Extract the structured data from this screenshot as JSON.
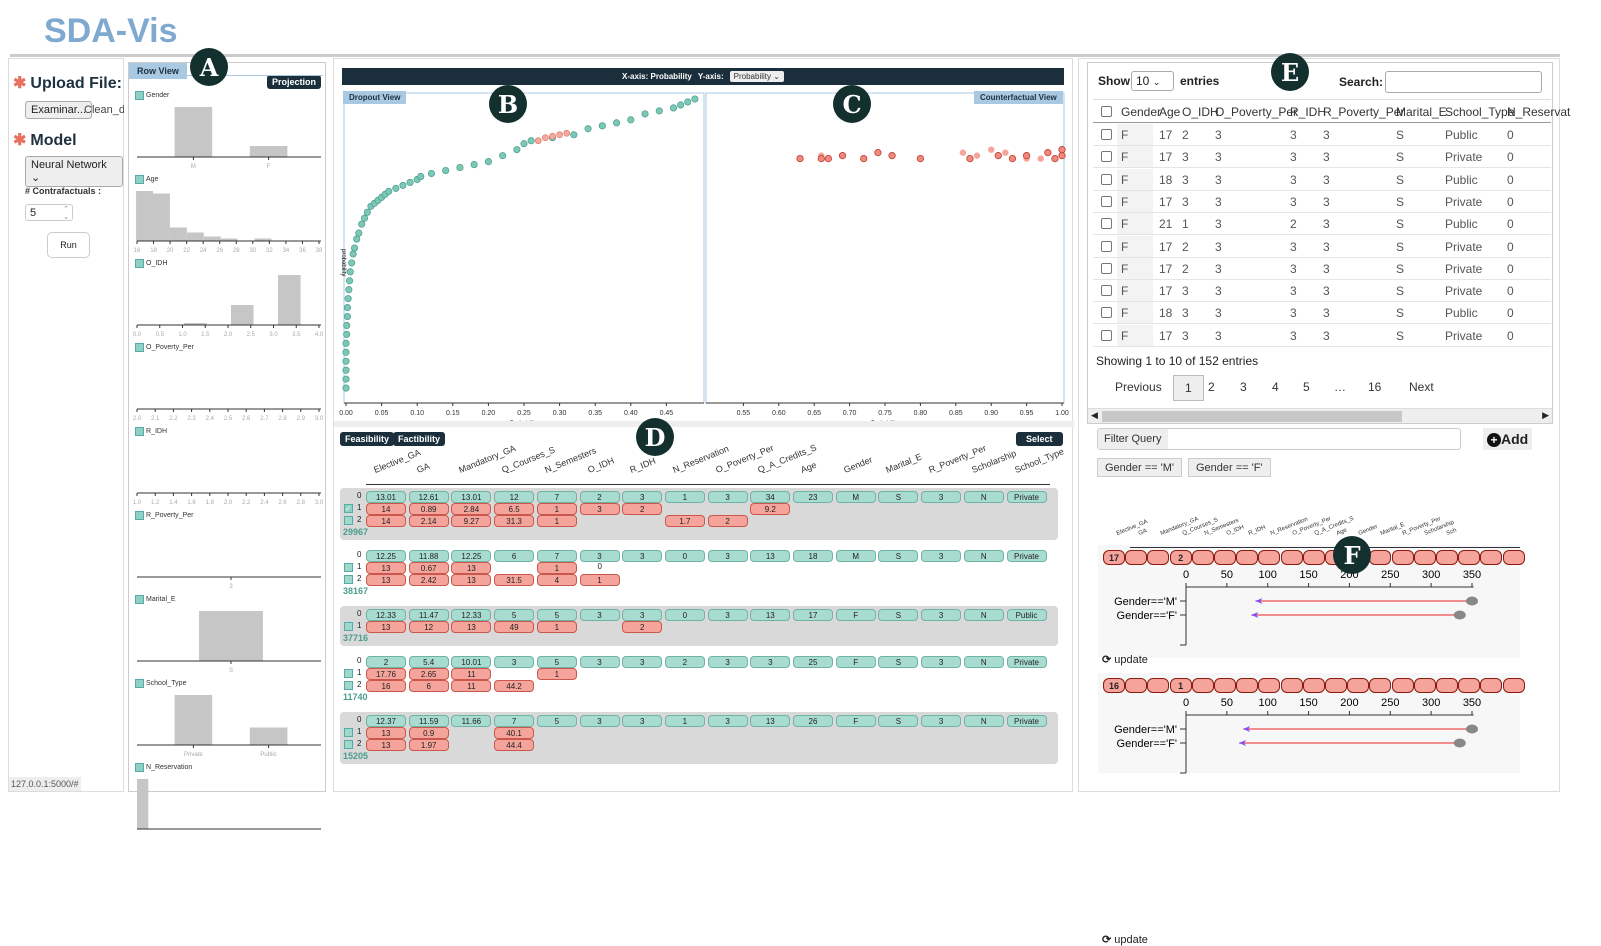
{
  "app": {
    "title": "SDA-Vis",
    "status_url": "127.0.0.1:5000/#"
  },
  "badges": [
    "A",
    "B",
    "C",
    "D",
    "E",
    "F"
  ],
  "left": {
    "upload_label": "Upload File:",
    "browse_button": "Examinar...",
    "file_name": "Clean_da",
    "model_label": "Model",
    "model_value": "Neural Network",
    "contrafactuals_label": "# Contrafactuals :",
    "contrafactuals_value": "5",
    "run_button": "Run"
  },
  "row_view": {
    "tab": "Row View",
    "projection_button": "Projection",
    "histograms": [
      {
        "name": "Gender",
        "ticks": [
          "M",
          "F"
        ],
        "bars": [
          {
            "at": 0.3,
            "w": 0.2,
            "v": 1.0
          },
          {
            "at": 0.7,
            "w": 0.2,
            "v": 0.22
          }
        ]
      },
      {
        "name": "Age",
        "ticks": [
          "16",
          "18",
          "20",
          "22",
          "24",
          "26",
          "28",
          "30",
          "32",
          "34",
          "36",
          "38"
        ],
        "bars": [
          {
            "at": 0.04,
            "w": 0.09,
            "v": 1.0
          },
          {
            "at": 0.13,
            "w": 0.09,
            "v": 0.95
          },
          {
            "at": 0.22,
            "w": 0.09,
            "v": 0.27
          },
          {
            "at": 0.31,
            "w": 0.09,
            "v": 0.17
          },
          {
            "at": 0.4,
            "w": 0.09,
            "v": 0.09
          },
          {
            "at": 0.49,
            "w": 0.09,
            "v": 0.05
          },
          {
            "at": 0.67,
            "w": 0.09,
            "v": 0.05
          }
        ]
      },
      {
        "name": "O_IDH",
        "ticks": [
          "0.0",
          "0.5",
          "1.0",
          "1.5",
          "2.0",
          "2.5",
          "3.0",
          "3.5",
          "4.0"
        ],
        "bars": [
          {
            "at": 0.31,
            "w": 0.12,
            "v": 0.04
          },
          {
            "at": 0.56,
            "w": 0.12,
            "v": 0.4
          },
          {
            "at": 0.81,
            "w": 0.12,
            "v": 1.0
          }
        ]
      },
      {
        "name": "O_Poverty_Per",
        "ticks": [
          "2.0",
          "2.1",
          "2.2",
          "2.3",
          "2.4",
          "2.5",
          "2.6",
          "2.7",
          "2.8",
          "2.9",
          "3.0"
        ],
        "bars": []
      },
      {
        "name": "R_IDH",
        "ticks": [
          "1.0",
          "1.2",
          "1.4",
          "1.6",
          "1.8",
          "2.0",
          "2.2",
          "2.4",
          "2.6",
          "2.8",
          "3.0"
        ],
        "bars": []
      },
      {
        "name": "R_Poverty_Per",
        "ticks": [
          "3"
        ],
        "bars": []
      },
      {
        "name": "Marital_E",
        "ticks": [
          "S"
        ],
        "bars": [
          {
            "at": 0.5,
            "w": 0.34,
            "v": 1.0
          }
        ]
      },
      {
        "name": "School_Type",
        "ticks": [
          "Private",
          "Public"
        ],
        "bars": [
          {
            "at": 0.3,
            "w": 0.2,
            "v": 1.0
          },
          {
            "at": 0.7,
            "w": 0.2,
            "v": 0.35
          }
        ]
      },
      {
        "name": "N_Reservation",
        "ticks": [],
        "bars": [
          {
            "at": 0.03,
            "w": 0.06,
            "v": 1.0
          }
        ]
      }
    ]
  },
  "projection": {
    "x_axis_label": "X-axis: Probability",
    "y_axis_label": "Y-axis:",
    "y_axis_value": "Probability",
    "dropout": {
      "tab": "Dropout View",
      "xlabel": "Probability",
      "ylabel": "probability",
      "xticks": [
        "0.00",
        "0.05",
        "0.10",
        "0.15",
        "0.20",
        "0.25",
        "0.30",
        "0.35",
        "0.40",
        "0.45"
      ],
      "xlim": [
        0,
        0.5
      ],
      "points": [
        [
          0,
          0.03
        ],
        [
          0,
          0.06
        ],
        [
          0,
          0.09
        ],
        [
          0,
          0.12
        ],
        [
          0,
          0.15
        ],
        [
          0,
          0.18
        ],
        [
          0.001,
          0.21
        ],
        [
          0.001,
          0.24
        ],
        [
          0.002,
          0.27
        ],
        [
          0.002,
          0.3
        ],
        [
          0.003,
          0.33
        ],
        [
          0.004,
          0.36
        ],
        [
          0.005,
          0.39
        ],
        [
          0.006,
          0.42
        ],
        [
          0.008,
          0.45
        ],
        [
          0.01,
          0.48
        ],
        [
          0.012,
          0.5
        ],
        [
          0.015,
          0.53
        ],
        [
          0.018,
          0.55
        ],
        [
          0.022,
          0.58
        ],
        [
          0.026,
          0.6
        ],
        [
          0.03,
          0.62
        ],
        [
          0.035,
          0.64
        ],
        [
          0.04,
          0.65
        ],
        [
          0.045,
          0.66
        ],
        [
          0.05,
          0.67
        ],
        [
          0.055,
          0.68
        ],
        [
          0.06,
          0.69
        ],
        [
          0.07,
          0.7
        ],
        [
          0.08,
          0.71
        ],
        [
          0.09,
          0.72
        ],
        [
          0.1,
          0.73
        ],
        [
          0.105,
          0.74
        ],
        [
          0.12,
          0.75
        ],
        [
          0.14,
          0.76
        ],
        [
          0.16,
          0.77
        ],
        [
          0.18,
          0.78
        ],
        [
          0.2,
          0.79
        ],
        [
          0.22,
          0.81
        ],
        [
          0.24,
          0.83
        ],
        [
          0.25,
          0.85
        ],
        [
          0.26,
          0.86
        ],
        [
          0.29,
          0.87
        ],
        [
          0.32,
          0.88
        ],
        [
          0.34,
          0.9
        ],
        [
          0.36,
          0.91
        ],
        [
          0.38,
          0.92
        ],
        [
          0.4,
          0.93
        ],
        [
          0.42,
          0.95
        ],
        [
          0.44,
          0.96
        ],
        [
          0.46,
          0.97
        ],
        [
          0.47,
          0.98
        ],
        [
          0.48,
          0.99
        ],
        [
          0.49,
          1.0
        ]
      ],
      "highlight": [
        [
          0.27,
          0.86
        ],
        [
          0.28,
          0.87
        ],
        [
          0.29,
          0.875
        ],
        [
          0.3,
          0.88
        ],
        [
          0.31,
          0.885
        ]
      ]
    },
    "counterfactual": {
      "tab": "Counterfactual View",
      "xlabel": "Probability",
      "xticks": [
        "0.55",
        "0.60",
        "0.65",
        "0.70",
        "0.75",
        "0.80",
        "0.85",
        "0.90",
        "0.95",
        "1.00"
      ],
      "xlim": [
        0.5,
        1.0
      ],
      "points": [
        [
          0.63,
          0.8
        ],
        [
          0.66,
          0.8
        ],
        [
          0.67,
          0.8
        ],
        [
          0.69,
          0.81
        ],
        [
          0.72,
          0.8
        ],
        [
          0.74,
          0.82
        ],
        [
          0.76,
          0.81
        ],
        [
          0.8,
          0.8
        ],
        [
          0.87,
          0.8
        ],
        [
          0.91,
          0.81
        ],
        [
          0.93,
          0.8
        ],
        [
          0.95,
          0.81
        ],
        [
          0.98,
          0.82
        ],
        [
          0.99,
          0.8
        ],
        [
          1.0,
          0.81
        ],
        [
          1.0,
          0.83
        ]
      ],
      "light_points": [
        [
          0.66,
          0.81
        ],
        [
          0.86,
          0.82
        ],
        [
          0.88,
          0.81
        ],
        [
          0.9,
          0.83
        ],
        [
          0.92,
          0.82
        ],
        [
          0.95,
          0.8
        ],
        [
          0.97,
          0.8
        ]
      ]
    }
  },
  "feasibility": {
    "feasibility_button": "Feasibility",
    "factibility_button": "Factibility",
    "select_button": "Select",
    "columns": [
      "Elective_GA",
      "GA",
      "Mandatory_GA",
      "Q_Courses_S",
      "N_Semesters",
      "O_IDH",
      "R_IDH",
      "N_Reservation",
      "O_Poverty_Per",
      "Q_A_Credits_S",
      "Age",
      "Gender",
      "Marital_E",
      "R_Poverty_Per",
      "Scholarship",
      "School_Type"
    ],
    "groups": [
      {
        "id": "29967",
        "rows": [
          [
            "13.01",
            "12.61",
            "13.01",
            "12",
            "7",
            "2",
            "3",
            "1",
            "3",
            "34",
            "23",
            "M",
            "S",
            "3",
            "N",
            "Private"
          ],
          [
            "14",
            "0.89",
            "2.84",
            "6.5",
            "1",
            "3",
            "2",
            null,
            null,
            "9.2"
          ],
          [
            "14",
            "2.14",
            "9.27",
            "31.3",
            "1",
            null,
            null,
            "1.7",
            "2"
          ]
        ],
        "checked": [
          1
        ]
      },
      {
        "id": "38167",
        "rows": [
          [
            "12.25",
            "11.88",
            "12.25",
            "6",
            "7",
            "3",
            "3",
            "0",
            "3",
            "13",
            "18",
            "M",
            "S",
            "3",
            "N",
            "Private"
          ],
          [
            "13",
            "0.67",
            "13",
            null,
            "1",
            "=0"
          ],
          [
            "13",
            "2.42",
            "13",
            "31.5",
            "4",
            "1"
          ]
        ],
        "checked": []
      },
      {
        "id": "37716",
        "rows": [
          [
            "12.33",
            "11.47",
            "12.33",
            "5",
            "5",
            "3",
            "3",
            "0",
            "3",
            "13",
            "17",
            "F",
            "S",
            "3",
            "N",
            "Public"
          ],
          [
            "13",
            "12",
            "13",
            "49",
            "1",
            null,
            "2"
          ]
        ],
        "checked": []
      },
      {
        "id": "11740",
        "rows": [
          [
            "2",
            "5.4",
            "10.01",
            "3",
            "5",
            "3",
            "3",
            "2",
            "3",
            "3",
            "25",
            "F",
            "S",
            "3",
            "N",
            "Private"
          ],
          [
            "17.76",
            "2.65",
            "11",
            null,
            "1"
          ],
          [
            "16",
            "6",
            "11",
            "44.2"
          ]
        ],
        "checked": []
      },
      {
        "id": "15205",
        "rows": [
          [
            "12.37",
            "11.59",
            "11.66",
            "7",
            "5",
            "3",
            "3",
            "1",
            "3",
            "13",
            "26",
            "F",
            "S",
            "3",
            "N",
            "Private"
          ],
          [
            "13",
            "0.9",
            null,
            "40.1"
          ],
          [
            "13",
            "1.97",
            null,
            "44.4"
          ]
        ],
        "checked": []
      }
    ]
  },
  "data_table": {
    "show_label": "Show",
    "page_size": "10",
    "entries_label": "entries",
    "search_label": "Search:",
    "headers": [
      "Gender",
      "Age",
      "O_IDH",
      "O_Poverty_Per",
      "R_IDH",
      "R_Poverty_Per",
      "Marital_E",
      "School_Type",
      "N_Reservat"
    ],
    "rows": [
      [
        "F",
        "17",
        "2",
        "3",
        "3",
        "3",
        "S",
        "Public",
        "0"
      ],
      [
        "F",
        "17",
        "3",
        "3",
        "3",
        "3",
        "S",
        "Private",
        "0"
      ],
      [
        "F",
        "18",
        "3",
        "3",
        "3",
        "3",
        "S",
        "Public",
        "0"
      ],
      [
        "F",
        "17",
        "3",
        "3",
        "3",
        "3",
        "S",
        "Private",
        "0"
      ],
      [
        "F",
        "21",
        "1",
        "3",
        "2",
        "3",
        "S",
        "Public",
        "0"
      ],
      [
        "F",
        "17",
        "2",
        "3",
        "3",
        "3",
        "S",
        "Private",
        "0"
      ],
      [
        "F",
        "17",
        "2",
        "3",
        "3",
        "3",
        "S",
        "Private",
        "0"
      ],
      [
        "F",
        "17",
        "3",
        "3",
        "3",
        "3",
        "S",
        "Private",
        "0"
      ],
      [
        "F",
        "18",
        "3",
        "3",
        "3",
        "3",
        "S",
        "Public",
        "0"
      ],
      [
        "F",
        "17",
        "3",
        "3",
        "3",
        "3",
        "S",
        "Private",
        "0"
      ]
    ],
    "info": "Showing 1 to 10 of 152 entries",
    "pagination": [
      "Previous",
      "1",
      "2",
      "3",
      "4",
      "5",
      "…",
      "16",
      "Next"
    ],
    "current_page": "1"
  },
  "filter": {
    "label": "Filter Query",
    "value": "",
    "add_button": "Add",
    "chips": [
      "Gender == 'M'",
      "Gender == 'F'"
    ]
  },
  "subgroups": {
    "columns": [
      "Elective_GA",
      "GA",
      "Mandatory_GA",
      "Q_Courses_S",
      "N_Semesters",
      "O_IDH",
      "R_IDH",
      "N_Reservation",
      "O_Poverty_Per",
      "Q_A_Credits_S",
      "Age",
      "Gender",
      "Marital_E",
      "R_Poverty_Per",
      "Scholarship",
      "Sch"
    ],
    "axis_ticks": [
      0,
      50,
      100,
      150,
      200,
      250,
      300,
      350
    ],
    "update_label": "update",
    "panels": [
      {
        "pills": [
          "17",
          "",
          "",
          "2",
          "",
          "",
          "",
          "",
          "",
          "",
          "",
          "",
          "",
          "",
          "",
          "",
          "",
          "",
          ""
        ],
        "rows": [
          {
            "label": "Gender=='M'",
            "from": 350,
            "to": 85
          },
          {
            "label": "Gender=='F'",
            "from": 335,
            "to": 80
          }
        ]
      },
      {
        "pills": [
          "16",
          "",
          "",
          "1",
          "",
          "",
          "",
          "",
          "",
          "",
          "",
          "",
          "",
          "",
          "",
          "",
          "",
          "",
          ""
        ],
        "rows": [
          {
            "label": "Gender=='M'",
            "from": 350,
            "to": 70
          },
          {
            "label": "Gender=='F'",
            "from": 335,
            "to": 65
          }
        ]
      }
    ]
  },
  "colors": {
    "teal": "#6ebfae",
    "red": "#e8705f",
    "dark": "#1a2e3b",
    "title": "#7fa9cf"
  }
}
